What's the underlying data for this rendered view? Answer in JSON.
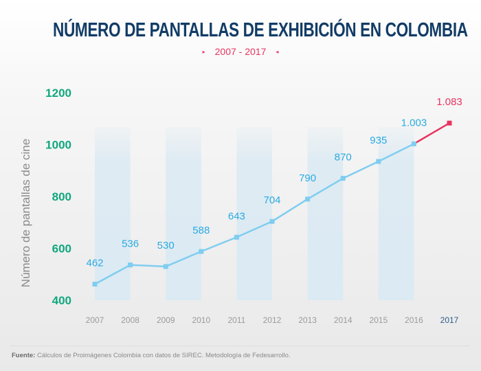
{
  "header": {
    "title": "NÚMERO DE PANTALLAS DE EXHIBICIÓN EN COLOMBIA",
    "subtitle": "2007 - 2017",
    "arrow_left": "▸",
    "arrow_right": "◂"
  },
  "footer": {
    "source_label": "Fuente:",
    "source_text": " Cálculos de Proimágenes Colombia con datos de SIREC. Metodología de Fedesarrollo."
  },
  "colors": {
    "title": "#123c66",
    "accent": "#e8345e",
    "line": "#7fcdf0",
    "value_label": "#29aae1",
    "tick_label": "#11a77e",
    "year_label": "#9a9a9a",
    "highlight_year": "#2d5b86",
    "stripe": "#dbeaf3"
  },
  "chart_data": {
    "type": "line",
    "title": "NÚMERO DE PANTALLAS DE EXHIBICIÓN EN COLOMBIA",
    "subtitle": "2007 - 2017",
    "xlabel": "",
    "ylabel": "Número de pantallas de cine",
    "ylim": [
      400,
      1200
    ],
    "yticks": [
      1200,
      1000,
      800,
      600,
      400
    ],
    "grid": false,
    "categories": [
      "2007",
      "2008",
      "2009",
      "2010",
      "2011",
      "2012",
      "2013",
      "2014",
      "2015",
      "2016",
      "2017"
    ],
    "series": [
      {
        "name": "Pantallas",
        "values": [
          462,
          536,
          530,
          588,
          643,
          704,
          790,
          870,
          935,
          1003,
          1083
        ],
        "labels": [
          "462",
          "536",
          "530",
          "588",
          "643",
          "704",
          "790",
          "870",
          "935",
          "1.003",
          "1.083"
        ],
        "highlight_last": true
      }
    ],
    "stripes": [
      [
        "2007",
        "2008"
      ],
      [
        "2009",
        "2010"
      ],
      [
        "2011",
        "2012"
      ],
      [
        "2013",
        "2014"
      ],
      [
        "2015",
        "2016"
      ]
    ],
    "highlight_category": "2017"
  }
}
